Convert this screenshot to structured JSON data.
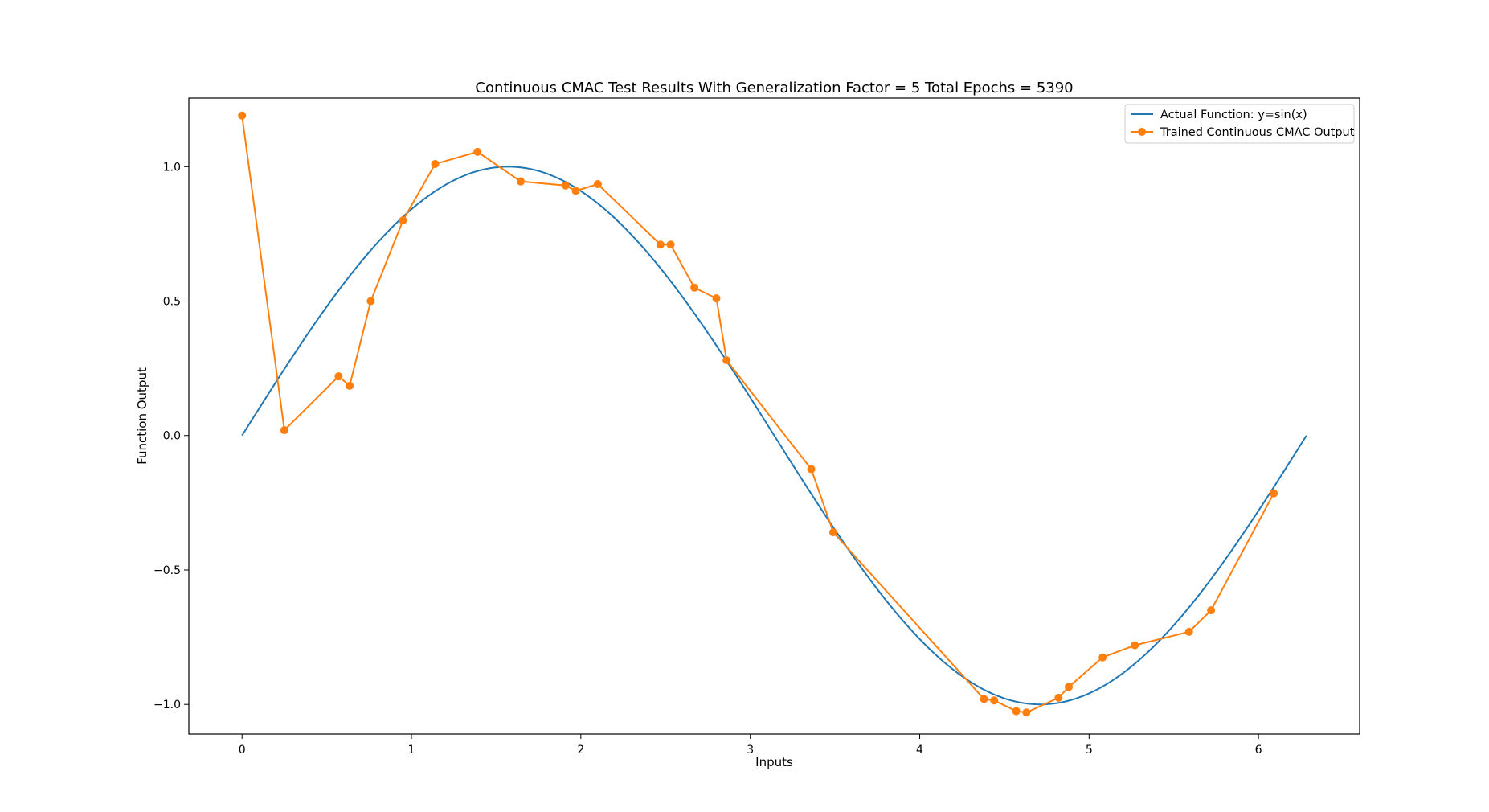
{
  "chart_data": {
    "type": "line",
    "title": "Continuous CMAC Test Results With Generalization Factor = 5 Total Epochs = 5390",
    "xlabel": "Inputs",
    "ylabel": "Function Output",
    "xlim": [
      -0.314,
      6.597
    ],
    "ylim": [
      -1.11,
      1.255
    ],
    "xticks": [
      0,
      1,
      2,
      3,
      4,
      5,
      6
    ],
    "xtick_labels": [
      "0",
      "1",
      "2",
      "3",
      "4",
      "5",
      "6"
    ],
    "yticks": [
      -1.0,
      -0.5,
      0.0,
      0.5,
      1.0
    ],
    "ytick_labels": [
      "−1.0",
      "−0.5",
      "0.0",
      "0.5",
      "1.0"
    ],
    "grid": false,
    "legend_position": "top-right",
    "series": [
      {
        "name": "Actual Function: y=sin(x)",
        "kind": "function",
        "function": "sin",
        "x_range": [
          0,
          6.2832
        ],
        "color": "#1f77b4",
        "marker": "none"
      },
      {
        "name": "Trained Continuous CMAC Output",
        "kind": "points",
        "color": "#ff7f0e",
        "marker": "circle",
        "x": [
          0.0,
          0.25,
          0.57,
          0.635,
          0.76,
          0.95,
          1.14,
          1.39,
          1.645,
          1.91,
          1.97,
          2.1,
          2.47,
          2.53,
          2.67,
          2.8,
          2.86,
          3.36,
          3.49,
          4.38,
          4.44,
          4.57,
          4.63,
          4.82,
          4.88,
          5.08,
          5.27,
          5.59,
          5.72,
          6.09
        ],
        "y": [
          1.19,
          0.02,
          0.22,
          0.185,
          0.5,
          0.8,
          1.01,
          1.055,
          0.945,
          0.93,
          0.91,
          0.935,
          0.71,
          0.71,
          0.55,
          0.51,
          0.28,
          -0.125,
          -0.36,
          -0.98,
          -0.985,
          -1.025,
          -1.03,
          -0.975,
          -0.935,
          -0.825,
          -0.78,
          -0.73,
          -0.65,
          -0.215
        ]
      }
    ]
  }
}
